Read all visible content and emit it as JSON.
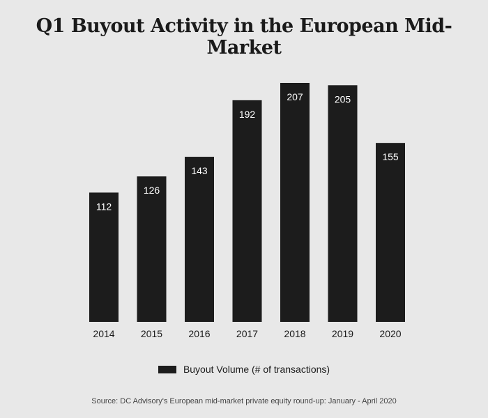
{
  "chart_data": {
    "type": "bar",
    "title": "Q1 Buyout Activity in the European Mid-Market",
    "categories": [
      "2014",
      "2015",
      "2016",
      "2017",
      "2018",
      "2019",
      "2020"
    ],
    "series": [
      {
        "name": "Buyout Volume (# of transactions)",
        "values": [
          112,
          126,
          143,
          192,
          207,
          205,
          155
        ]
      }
    ],
    "xlabel": "",
    "ylabel": "",
    "ylim": [
      0,
      207
    ],
    "grid": false,
    "legend_position": "bottom-center",
    "source": "Source: DC Advisory's European mid-market private equity round-up: January - April 2020",
    "colors": {
      "bar": "#1c1c1c",
      "background": "#e8e8e8",
      "bar_label": "#ffffff"
    }
  }
}
